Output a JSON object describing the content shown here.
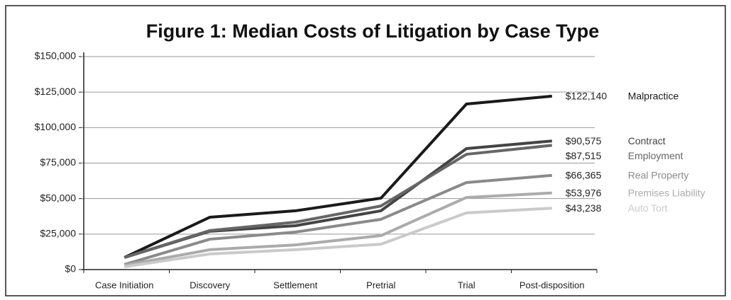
{
  "chart_data": {
    "type": "line",
    "title": "Figure 1: Median Costs of Litigation by Case Type",
    "categories": [
      "Case Initiation",
      "Discovery",
      "Settlement",
      "Pretrial",
      "Trial",
      "Post-disposition"
    ],
    "series": [
      {
        "name": "Malpractice",
        "color": "#1a1a1a",
        "values": [
          8500,
          36900,
          41400,
          50300,
          116600,
          122140
        ],
        "value_labels": [
          null,
          null,
          null,
          null,
          null,
          "$122,140"
        ]
      },
      {
        "name": "Contract",
        "color": "#444444",
        "values": [
          8500,
          27000,
          30900,
          41400,
          85200,
          90575
        ],
        "value_labels": [
          null,
          null,
          null,
          null,
          null,
          "$90,575"
        ]
      },
      {
        "name": "Employment",
        "color": "#666666",
        "values": [
          8500,
          27500,
          33400,
          44800,
          81200,
          87515
        ],
        "value_labels": [
          null,
          null,
          null,
          null,
          null,
          "$87,515"
        ]
      },
      {
        "name": "Real Property",
        "color": "#8a8a8a",
        "values": [
          3500,
          21400,
          26400,
          35400,
          61300,
          66365
        ],
        "value_labels": [
          null,
          null,
          null,
          null,
          null,
          "$66,365"
        ]
      },
      {
        "name": "Premises Liability",
        "color": "#ababab",
        "values": [
          3000,
          14000,
          17400,
          23900,
          50800,
          53976
        ],
        "value_labels": [
          null,
          null,
          null,
          null,
          null,
          "$53,976"
        ]
      },
      {
        "name": "Auto Tort",
        "color": "#cacaca",
        "values": [
          2000,
          11000,
          14000,
          17900,
          39900,
          43238
        ],
        "value_labels": [
          null,
          null,
          null,
          null,
          null,
          "$43,238"
        ]
      }
    ],
    "ylim": [
      0,
      150000
    ],
    "yticks": [
      {
        "value": 0,
        "label": "$0"
      },
      {
        "value": 25000,
        "label": "$25,000"
      },
      {
        "value": 50000,
        "label": "$50,000"
      },
      {
        "value": 75000,
        "label": "$75,000"
      },
      {
        "value": 100000,
        "label": "$100,000"
      },
      {
        "value": 125000,
        "label": "$125,000"
      },
      {
        "value": 150000,
        "label": "$150,000"
      }
    ],
    "grid": true
  }
}
